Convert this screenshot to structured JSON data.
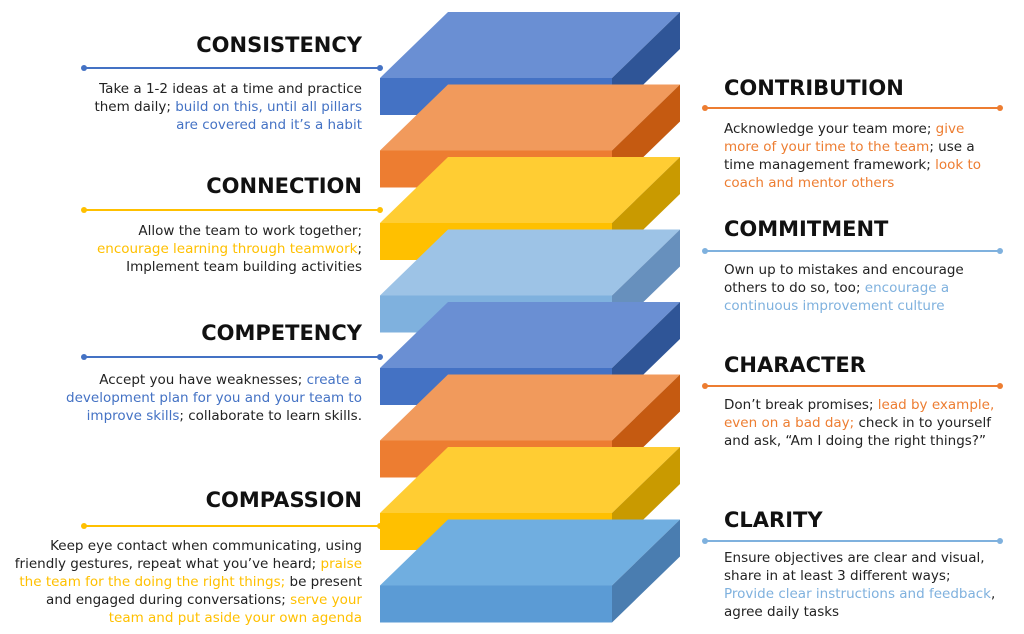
{
  "left": [
    {
      "title": "CONSISTENCY",
      "color": "#4472c4",
      "lines": [
        [
          {
            "text": "Take a 1-2 ideas at a time and practice"
          }
        ],
        [
          {
            "text": "them daily; "
          },
          {
            "text": "build on this, until all pillars",
            "color": "#4472c4"
          }
        ],
        [
          {
            "text": "are covered and it’s a habit",
            "color": "#4472c4"
          }
        ]
      ]
    },
    {
      "title": "CONNECTION",
      "color": "#ffc000",
      "lines": [
        [
          {
            "text": "Allow the team to work together;"
          }
        ],
        [
          {
            "text": "encourage learning through teamwork",
            "color": "#ffc000"
          },
          {
            "text": ";"
          }
        ],
        [
          {
            "text": "Implement team building activities"
          }
        ]
      ]
    },
    {
      "title": "COMPETENCY",
      "color": "#4472c4",
      "lines": [
        [
          {
            "text": "Accept you have weaknesses; "
          },
          {
            "text": "create a",
            "color": "#4472c4"
          }
        ],
        [
          {
            "text": "development plan for you and your team to",
            "color": "#4472c4"
          }
        ],
        [
          {
            "text": "improve skills",
            "color": "#4472c4"
          },
          {
            "text": "; collaborate to learn skills."
          }
        ]
      ]
    },
    {
      "title": "COMPASSION",
      "color": "#ffc000",
      "lines": [
        [
          {
            "text": "Keep eye contact when communicating, using"
          }
        ],
        [
          {
            "text": "friendly gestures, repeat what you’ve heard; "
          },
          {
            "text": "praise",
            "color": "#ffc000"
          }
        ],
        [
          {
            "text": "the team for the doing the right things;",
            "color": "#ffc000"
          },
          {
            "text": " be present"
          }
        ],
        [
          {
            "text": "and engaged during conversations; "
          },
          {
            "text": "serve your",
            "color": "#ffc000"
          }
        ],
        [
          {
            "text": "team and put aside your own agenda",
            "color": "#ffc000"
          }
        ]
      ]
    }
  ],
  "right": [
    {
      "title": "CONTRIBUTION",
      "color": "#ed7d31",
      "lines": [
        [
          {
            "text": "Acknowledge your team more; "
          },
          {
            "text": "give",
            "color": "#ed7d31"
          }
        ],
        [
          {
            "text": "more of your time to the team",
            "color": "#ed7d31"
          },
          {
            "text": "; use a"
          }
        ],
        [
          {
            "text": "time management framework; "
          },
          {
            "text": "look to",
            "color": "#ed7d31"
          }
        ],
        [
          {
            "text": "coach and mentor others",
            "color": "#ed7d31"
          }
        ]
      ]
    },
    {
      "title": "COMMITMENT",
      "color": "#7fb1de",
      "lines": [
        [
          {
            "text": "Own up to mistakes and encourage"
          }
        ],
        [
          {
            "text": "others to do so, too; "
          },
          {
            "text": "encourage a",
            "color": "#7fb1de"
          }
        ],
        [
          {
            "text": "continuous improvement culture",
            "color": "#7fb1de"
          }
        ]
      ]
    },
    {
      "title": "CHARACTER",
      "color": "#ed7d31",
      "lines": [
        [
          {
            "text": "Don’t break promises; "
          },
          {
            "text": "lead by example,",
            "color": "#ed7d31"
          }
        ],
        [
          {
            "text": "even on a bad day;",
            "color": "#ed7d31"
          },
          {
            "text": " check in to yourself"
          }
        ],
        [
          {
            "text": "and ask, “Am I doing the right things?”"
          }
        ]
      ]
    },
    {
      "title": "CLARITY",
      "color": "#7fb1de",
      "lines": [
        [
          {
            "text": "Ensure objectives are clear and visual,"
          }
        ],
        [
          {
            "text": "share in at least 3 different ways;"
          }
        ],
        [
          {
            "text": "Provide clear instructions and feedback",
            "color": "#7fb1de"
          },
          {
            "text": ","
          }
        ],
        [
          {
            "text": "agree daily tasks"
          }
        ]
      ]
    }
  ]
}
